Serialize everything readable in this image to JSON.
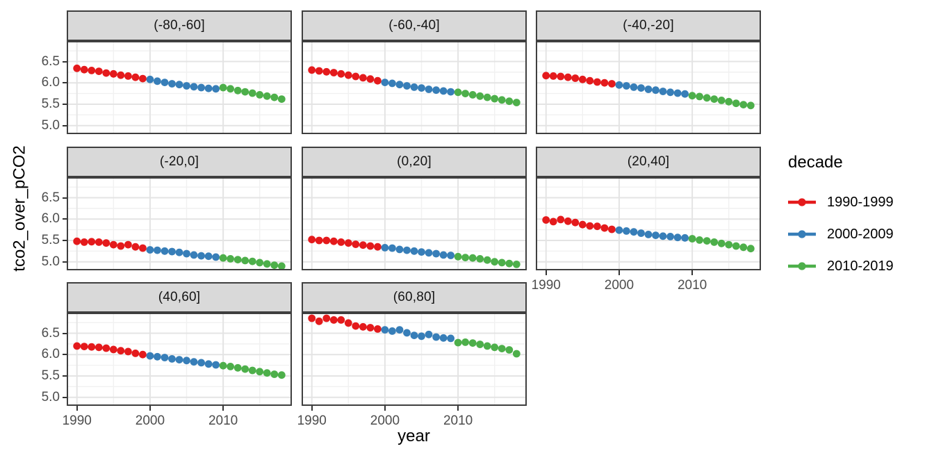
{
  "chart_data": {
    "type": "scatter",
    "title": "",
    "xlabel": "year",
    "ylabel": "tco2_over_pCO2",
    "legend_title": "decade",
    "legend_position": "right",
    "grid": true,
    "x_domain": [
      1988.6,
      2019.4
    ],
    "y_domain": [
      4.8,
      6.98
    ],
    "x_ticks": [
      1990,
      2000,
      2010
    ],
    "x_minor_ticks": [
      1995,
      2005,
      2015
    ],
    "y_ticks": [
      6.5,
      6.0,
      5.5,
      5.0
    ],
    "y_minor_ticks": [
      6.75,
      6.25,
      5.75,
      5.25
    ],
    "series": [
      {
        "name": "1990-1999",
        "color": "#E41A1C",
        "start_year": 1990
      },
      {
        "name": "2000-2009",
        "color": "#377EB8",
        "start_year": 2000
      },
      {
        "name": "2010-2019",
        "color": "#4DAF4A",
        "start_year": 2010
      }
    ],
    "facets": [
      {
        "label": "(-80,-60]",
        "values": [
          [
            6.34,
            6.31,
            6.29,
            6.27,
            6.23,
            6.21,
            6.18,
            6.16,
            6.13,
            6.1
          ],
          [
            6.08,
            6.04,
            6.01,
            5.98,
            5.96,
            5.93,
            5.91,
            5.89,
            5.87,
            5.86
          ],
          [
            5.89,
            5.86,
            5.82,
            5.79,
            5.76,
            5.72,
            5.69,
            5.66,
            5.62
          ]
        ]
      },
      {
        "label": "(-60,-40]",
        "values": [
          [
            6.3,
            6.28,
            6.26,
            6.24,
            6.21,
            6.18,
            6.15,
            6.12,
            6.09,
            6.05
          ],
          [
            6.01,
            5.99,
            5.96,
            5.93,
            5.9,
            5.88,
            5.85,
            5.83,
            5.81,
            5.79
          ],
          [
            5.78,
            5.75,
            5.72,
            5.69,
            5.66,
            5.63,
            5.6,
            5.57,
            5.54
          ]
        ]
      },
      {
        "label": "(-40,-20]",
        "values": [
          [
            6.17,
            6.16,
            6.15,
            6.13,
            6.11,
            6.08,
            6.05,
            6.02,
            6.0,
            5.98
          ],
          [
            5.95,
            5.93,
            5.9,
            5.88,
            5.85,
            5.83,
            5.8,
            5.78,
            5.76,
            5.74
          ],
          [
            5.7,
            5.68,
            5.65,
            5.62,
            5.59,
            5.56,
            5.52,
            5.49,
            5.47
          ]
        ]
      },
      {
        "label": "(-20,0]",
        "values": [
          [
            5.48,
            5.46,
            5.47,
            5.46,
            5.44,
            5.4,
            5.37,
            5.4,
            5.35,
            5.32
          ],
          [
            5.28,
            5.27,
            5.25,
            5.24,
            5.22,
            5.19,
            5.16,
            5.14,
            5.13,
            5.11
          ],
          [
            5.09,
            5.07,
            5.05,
            5.03,
            5.01,
            4.98,
            4.95,
            4.92,
            4.9
          ]
        ]
      },
      {
        "label": "(0,20]",
        "values": [
          [
            5.52,
            5.5,
            5.5,
            5.48,
            5.46,
            5.44,
            5.41,
            5.39,
            5.37,
            5.35
          ],
          [
            5.33,
            5.32,
            5.29,
            5.27,
            5.25,
            5.23,
            5.21,
            5.19,
            5.16,
            5.15
          ],
          [
            5.12,
            5.1,
            5.09,
            5.07,
            5.04,
            5.0,
            4.98,
            4.96,
            4.94
          ]
        ]
      },
      {
        "label": "(20,40]",
        "values": [
          [
            5.98,
            5.94,
            5.99,
            5.95,
            5.92,
            5.87,
            5.84,
            5.83,
            5.79,
            5.76
          ],
          [
            5.74,
            5.72,
            5.7,
            5.67,
            5.64,
            5.62,
            5.6,
            5.59,
            5.57,
            5.56
          ],
          [
            5.54,
            5.51,
            5.49,
            5.46,
            5.43,
            5.4,
            5.37,
            5.34,
            5.31
          ]
        ]
      },
      {
        "label": "(40,60]",
        "values": [
          [
            6.2,
            6.19,
            6.18,
            6.17,
            6.15,
            6.12,
            6.09,
            6.07,
            6.03,
            6.0
          ],
          [
            5.97,
            5.95,
            5.93,
            5.9,
            5.88,
            5.86,
            5.83,
            5.81,
            5.78,
            5.76
          ],
          [
            5.74,
            5.72,
            5.69,
            5.66,
            5.63,
            5.6,
            5.57,
            5.54,
            5.52
          ]
        ]
      },
      {
        "label": "(60,80]",
        "values": [
          [
            6.85,
            6.78,
            6.85,
            6.81,
            6.81,
            6.74,
            6.67,
            6.65,
            6.63,
            6.6
          ],
          [
            6.58,
            6.55,
            6.58,
            6.51,
            6.45,
            6.43,
            6.47,
            6.41,
            6.39,
            6.38
          ],
          [
            6.28,
            6.29,
            6.27,
            6.24,
            6.2,
            6.17,
            6.14,
            6.11,
            6.02
          ]
        ]
      }
    ],
    "style": {
      "strip_bg": "#d9d9d9",
      "panel_border": "#3f3f3f",
      "grid_major": "#e4e4e4",
      "grid_minor": "#f1f1f1",
      "tick_text": "#4d4d4d",
      "point_radius": 5.4
    }
  }
}
